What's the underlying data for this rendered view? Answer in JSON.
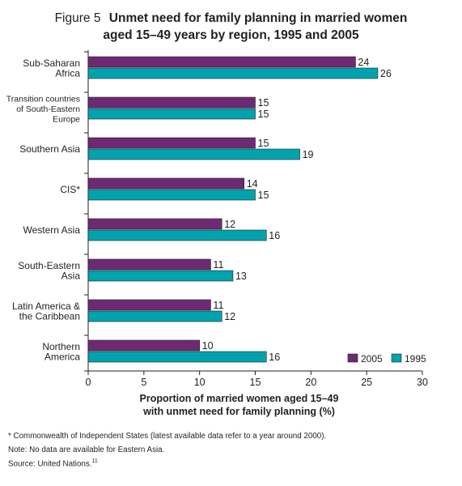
{
  "title": {
    "figure_label": "Figure 5",
    "line1": "Unmet need for family planning in married women",
    "line2": "aged 15–49 years by region, 1995 and 2005"
  },
  "chart_data": {
    "type": "bar",
    "orientation": "horizontal",
    "categories": [
      [
        "Sub-Saharan",
        "Africa"
      ],
      [
        "Transition countries",
        "of South-Eastern",
        "Europe"
      ],
      [
        "Southern Asia"
      ],
      [
        "CIS*"
      ],
      [
        "Western Asia"
      ],
      [
        "South-Eastern",
        "Asia"
      ],
      [
        "Latin America &",
        "the Caribbean"
      ],
      [
        "Northern",
        "America"
      ]
    ],
    "series": [
      {
        "name": "2005",
        "color": "#6d2a73",
        "values": [
          24,
          15,
          15,
          14,
          12,
          11,
          11,
          10
        ]
      },
      {
        "name": "1995",
        "color": "#00a3ad",
        "values": [
          26,
          15,
          19,
          15,
          16,
          13,
          12,
          16
        ]
      }
    ],
    "xlim": [
      0,
      30
    ],
    "xticks": [
      0,
      5,
      10,
      15,
      20,
      25,
      30
    ],
    "xlabel": [
      "Proportion of married women aged 15–49",
      "with unmet need for family planning (%)"
    ],
    "legend_placement": "bottom-right",
    "grid": false
  },
  "footnotes": [
    "* Commonwealth of Independent States (latest available data refer to a year around 2000).",
    "Note: No data are available for Eastern Asia.",
    "Source: United Nations."
  ],
  "source_superscript": "11"
}
